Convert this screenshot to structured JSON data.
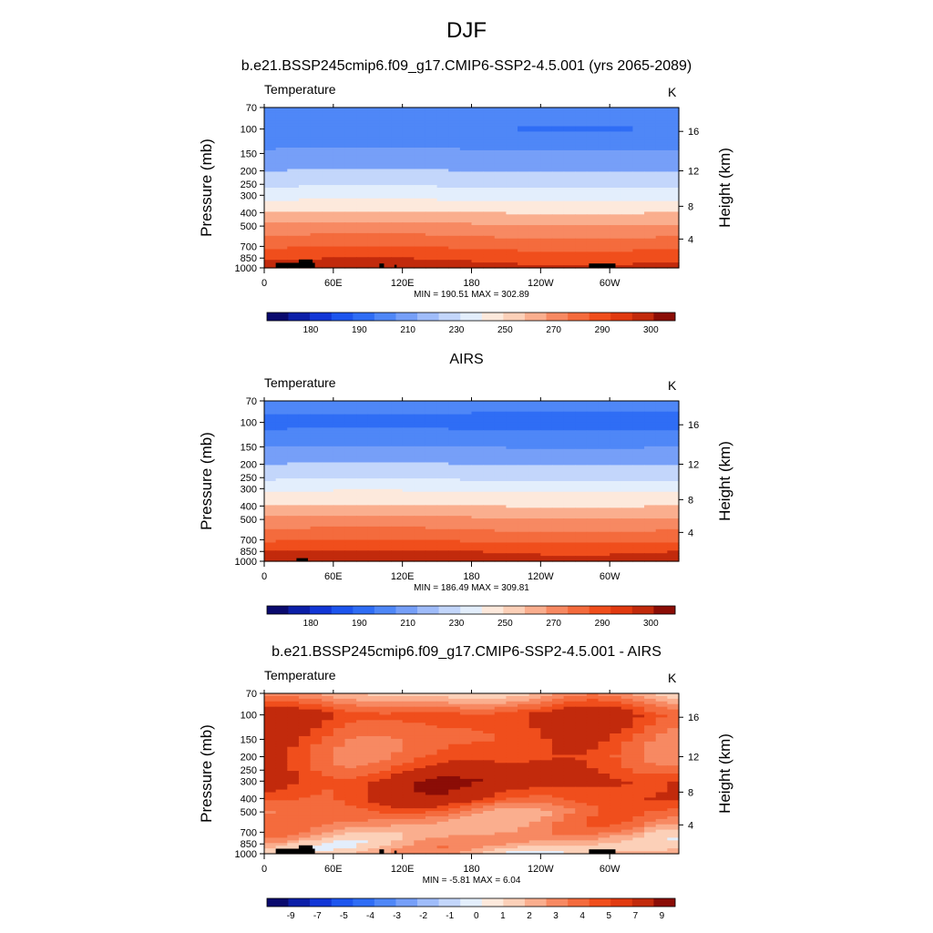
{
  "page": {
    "title": "DJF"
  },
  "chart_data": [
    {
      "type": "heatmap",
      "title": "b.e21.BSSP245cmip6.f09_g17.CMIP6-SSP2-4.5.001 (yrs 2065-2089)",
      "subtitle": "Temperature",
      "units": "K",
      "ylabel": "Pressure (mb)",
      "ylabel_right": "Height (km)",
      "x_ticks": [
        "0",
        "60E",
        "120E",
        "180",
        "120W",
        "60W"
      ],
      "x_tick_values": [
        0,
        60,
        120,
        180,
        240,
        300
      ],
      "xlim": [
        0,
        360
      ],
      "y_ticks": [
        70,
        100,
        150,
        200,
        250,
        300,
        400,
        500,
        700,
        850,
        1000
      ],
      "ylim": [
        1000,
        70
      ],
      "y_scale": "log",
      "height_ticks": [
        4,
        8,
        12,
        16
      ],
      "stats": "MIN = 190.51  MAX = 302.89",
      "min": 190.51,
      "max": 302.89,
      "colorbar_labels": [
        "180",
        "190",
        "210",
        "230",
        "250",
        "270",
        "290",
        "300"
      ],
      "levels_pressure": [
        70,
        100,
        150,
        200,
        250,
        300,
        400,
        500,
        700,
        850,
        1000
      ],
      "values_by_level": [
        208,
        200,
        212,
        220,
        228,
        236,
        250,
        262,
        278,
        288,
        294
      ]
    },
    {
      "type": "heatmap",
      "title": "AIRS",
      "subtitle": "Temperature",
      "units": "K",
      "ylabel": "Pressure (mb)",
      "ylabel_right": "Height (km)",
      "x_ticks": [
        "0",
        "60E",
        "120E",
        "180",
        "120W",
        "60W"
      ],
      "x_tick_values": [
        0,
        60,
        120,
        180,
        240,
        300
      ],
      "xlim": [
        0,
        360
      ],
      "y_ticks": [
        70,
        100,
        150,
        200,
        250,
        300,
        400,
        500,
        700,
        850,
        1000
      ],
      "ylim": [
        1000,
        70
      ],
      "y_scale": "log",
      "height_ticks": [
        4,
        8,
        12,
        16
      ],
      "stats": "MIN = 186.49  MAX = 309.81",
      "min": 186.49,
      "max": 309.81,
      "colorbar_labels": [
        "180",
        "190",
        "210",
        "230",
        "250",
        "270",
        "290",
        "300"
      ],
      "levels_pressure": [
        70,
        100,
        150,
        200,
        250,
        300,
        400,
        500,
        700,
        850,
        1000
      ],
      "values_by_level": [
        205,
        196,
        210,
        220,
        228,
        238,
        250,
        262,
        278,
        290,
        296
      ]
    },
    {
      "type": "heatmap",
      "title": "b.e21.BSSP245cmip6.f09_g17.CMIP6-SSP2-4.5.001 - AIRS",
      "subtitle": "Temperature",
      "units": "K",
      "ylabel": "Pressure (mb)",
      "ylabel_right": "Height (km)",
      "x_ticks": [
        "0",
        "60E",
        "120E",
        "180",
        "120W",
        "60W"
      ],
      "x_tick_values": [
        0,
        60,
        120,
        180,
        240,
        300
      ],
      "xlim": [
        0,
        360
      ],
      "y_ticks": [
        70,
        100,
        150,
        200,
        250,
        300,
        400,
        500,
        700,
        850,
        1000
      ],
      "ylim": [
        1000,
        70
      ],
      "y_scale": "log",
      "height_ticks": [
        4,
        8,
        12,
        16
      ],
      "stats": "MIN = -5.81  MAX =   6.04",
      "min": -5.81,
      "max": 6.04,
      "colorbar_labels": [
        "-9",
        "-7",
        "-5",
        "-4",
        "-3",
        "-2",
        "-1",
        "0",
        "1",
        "2",
        "3",
        "4",
        "5",
        "7",
        "9"
      ],
      "levels_pressure": [
        70,
        100,
        150,
        200,
        250,
        300,
        400,
        500,
        700,
        850,
        1000
      ],
      "values_by_level": [
        1,
        5,
        4,
        4,
        5,
        6,
        5,
        3,
        2,
        1.5,
        1
      ]
    }
  ],
  "colorbar_colors": [
    "#0a0a6e",
    "#0c1fa8",
    "#1236d6",
    "#1d55ee",
    "#2f6df5",
    "#4f87f7",
    "#769ff8",
    "#9fbcfa",
    "#c3d6fb",
    "#e3eefc",
    "#fde9dc",
    "#fcd0b8",
    "#faae8e",
    "#f78962",
    "#f46b3d",
    "#f04e1c",
    "#e13a10",
    "#c22a0c",
    "#8b0d06"
  ]
}
